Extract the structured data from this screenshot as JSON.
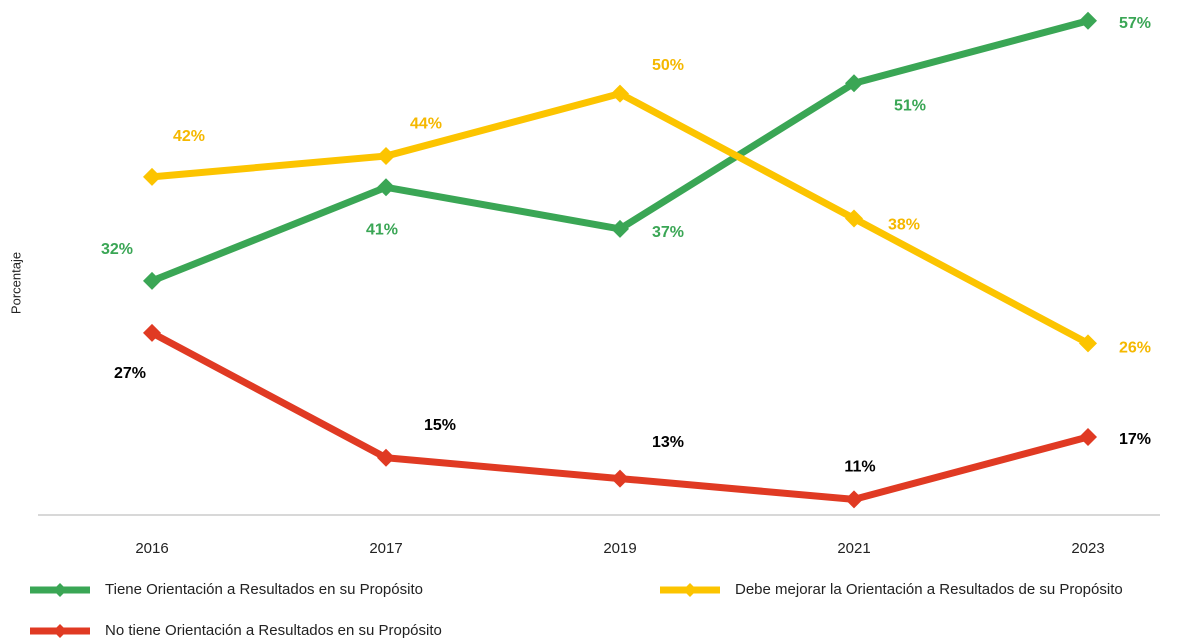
{
  "chart_data": {
    "type": "line",
    "y_label": "Porcentaje",
    "categories": [
      "2016",
      "2017",
      "2019",
      "2021",
      "2023"
    ],
    "ylim": [
      9.5,
      59
    ],
    "series": [
      {
        "name": "Tiene Orientación a Resultados en su Propósito",
        "color": "#3aa655",
        "label_color": "#3aa655",
        "values": [
          32,
          41,
          37,
          51,
          57
        ],
        "value_labels": [
          "32%",
          "41%",
          "37%",
          "51%",
          "57%"
        ]
      },
      {
        "name": "Debe mejorar la Orientación a Resultados de su Propósito",
        "color": "#fcc400",
        "label_color": "#f5b800",
        "values": [
          42,
          44,
          50,
          38,
          26
        ],
        "value_labels": [
          "42%",
          "44%",
          "50%",
          "38%",
          "26%"
        ]
      },
      {
        "name": "No tiene Orientación a Resultados en su Propósito",
        "color": "#e03a23",
        "label_color": "#000000",
        "values": [
          27,
          15,
          13,
          11,
          17
        ],
        "value_labels": [
          "27%",
          "15%",
          "13%",
          "11%",
          "17%"
        ]
      }
    ]
  }
}
